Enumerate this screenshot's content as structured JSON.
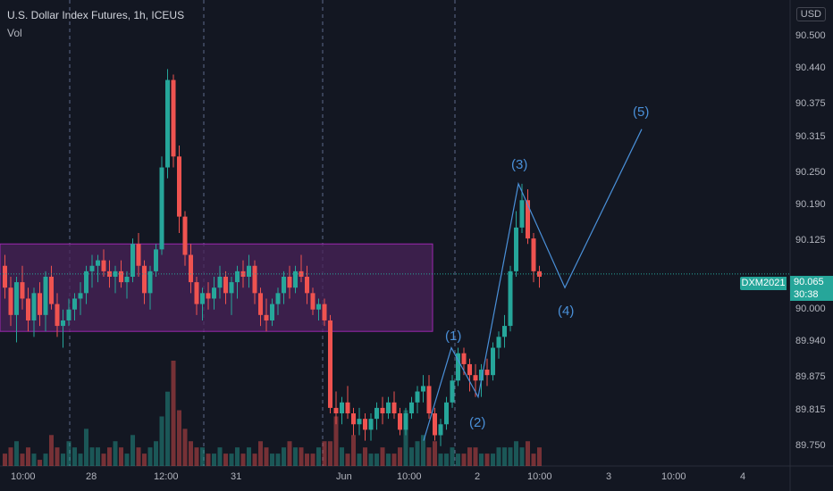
{
  "header": {
    "title": "U.S. Dollar Index Futures, 1h, ICEUS",
    "volume_label": "Vol",
    "currency_button": "USD"
  },
  "price_axis": {
    "ticks": [
      "90.500",
      "90.440",
      "90.375",
      "90.315",
      "90.250",
      "90.190",
      "90.125",
      "90.000",
      "89.940",
      "89.875",
      "89.815",
      "89.750"
    ],
    "last_price": "90.065",
    "countdown": "30:38",
    "symbol_tag": "DXM2021"
  },
  "time_axis": {
    "ticks": [
      "10:00",
      "28",
      "12:00",
      "31",
      "Jun",
      "10:00",
      "2",
      "10:00",
      "3",
      "10:00",
      "4"
    ]
  },
  "wave_labels": [
    "(1)",
    "(2)",
    "(3)",
    "(4)",
    "(5)"
  ],
  "colors": {
    "background": "#131722",
    "up": "#26a69a",
    "down": "#ef5350",
    "range_box_fill": "#4a235a",
    "range_box_border": "#9c27b0",
    "wave_line": "#4a90d9"
  },
  "chart_data": {
    "type": "candlestick",
    "candles": [
      [
        90.08,
        90.1,
        90.02,
        90.04
      ],
      [
        90.04,
        90.06,
        89.97,
        89.99
      ],
      [
        89.99,
        90.06,
        89.94,
        90.05
      ],
      [
        90.05,
        90.08,
        90.0,
        90.02
      ],
      [
        90.02,
        90.04,
        89.96,
        89.98
      ],
      [
        89.98,
        90.04,
        89.95,
        90.03
      ],
      [
        90.03,
        90.05,
        89.97,
        89.99
      ],
      [
        89.99,
        90.07,
        89.96,
        90.06
      ],
      [
        90.06,
        90.08,
        90.0,
        90.01
      ],
      [
        90.01,
        90.03,
        89.95,
        89.97
      ],
      [
        89.97,
        90.0,
        89.93,
        89.98
      ],
      [
        89.98,
        90.02,
        89.97,
        90.0
      ],
      [
        90.0,
        90.03,
        89.98,
        90.02
      ],
      [
        90.02,
        90.05,
        89.99,
        90.03
      ],
      [
        90.03,
        90.08,
        90.01,
        90.07
      ],
      [
        90.07,
        90.1,
        90.04,
        90.08
      ],
      [
        90.08,
        90.1,
        90.05,
        90.09
      ],
      [
        90.09,
        90.11,
        90.06,
        90.07
      ],
      [
        90.07,
        90.09,
        90.04,
        90.06
      ],
      [
        90.06,
        90.08,
        90.03,
        90.07
      ],
      [
        90.07,
        90.09,
        90.04,
        90.05
      ],
      [
        90.05,
        90.07,
        90.02,
        90.06
      ],
      [
        90.06,
        90.13,
        90.05,
        90.12
      ],
      [
        90.12,
        90.14,
        90.06,
        90.08
      ],
      [
        90.08,
        90.09,
        90.01,
        90.03
      ],
      [
        90.03,
        90.08,
        90.0,
        90.07
      ],
      [
        90.07,
        90.12,
        90.06,
        90.11
      ],
      [
        90.11,
        90.28,
        90.1,
        90.26
      ],
      [
        90.26,
        90.44,
        90.24,
        90.42
      ],
      [
        90.42,
        90.43,
        90.26,
        90.28
      ],
      [
        90.28,
        90.3,
        90.14,
        90.17
      ],
      [
        90.17,
        90.18,
        90.08,
        90.1
      ],
      [
        90.1,
        90.12,
        90.03,
        90.05
      ],
      [
        90.05,
        90.06,
        89.99,
        90.01
      ],
      [
        90.01,
        90.04,
        89.98,
        90.03
      ],
      [
        90.03,
        90.05,
        90.0,
        90.02
      ],
      [
        90.02,
        90.06,
        90.0,
        90.04
      ],
      [
        90.04,
        90.08,
        90.02,
        90.06
      ],
      [
        90.06,
        90.07,
        90.01,
        90.03
      ],
      [
        90.03,
        90.06,
        89.99,
        90.05
      ],
      [
        90.05,
        90.08,
        90.02,
        90.07
      ],
      [
        90.07,
        90.09,
        90.04,
        90.06
      ],
      [
        90.06,
        90.1,
        90.04,
        90.08
      ],
      [
        90.08,
        90.09,
        90.01,
        90.03
      ],
      [
        90.03,
        90.04,
        89.97,
        89.99
      ],
      [
        89.99,
        90.02,
        89.96,
        89.98
      ],
      [
        89.98,
        90.02,
        89.97,
        90.01
      ],
      [
        90.01,
        90.04,
        89.99,
        90.03
      ],
      [
        90.03,
        90.07,
        90.01,
        90.06
      ],
      [
        90.06,
        90.08,
        90.02,
        90.04
      ],
      [
        90.04,
        90.08,
        90.03,
        90.07
      ],
      [
        90.07,
        90.1,
        90.05,
        90.06
      ],
      [
        90.06,
        90.08,
        90.01,
        90.03
      ],
      [
        90.03,
        90.04,
        89.99,
        90.0
      ],
      [
        90.0,
        90.02,
        89.98,
        90.01
      ],
      [
        90.01,
        90.02,
        89.97,
        89.98
      ],
      [
        89.98,
        89.99,
        89.81,
        89.82
      ],
      [
        89.82,
        89.85,
        89.79,
        89.81
      ],
      [
        89.81,
        89.84,
        89.79,
        89.83
      ],
      [
        89.83,
        89.86,
        89.8,
        89.81
      ],
      [
        89.81,
        89.82,
        89.77,
        89.79
      ],
      [
        89.79,
        89.82,
        89.77,
        89.8
      ],
      [
        89.8,
        89.81,
        89.76,
        89.78
      ],
      [
        89.78,
        89.81,
        89.76,
        89.8
      ],
      [
        89.8,
        89.83,
        89.78,
        89.82
      ],
      [
        89.82,
        89.84,
        89.79,
        89.81
      ],
      [
        89.81,
        89.84,
        89.8,
        89.83
      ],
      [
        89.83,
        89.85,
        89.8,
        89.81
      ],
      [
        89.81,
        89.82,
        89.77,
        89.78
      ],
      [
        89.78,
        89.82,
        89.77,
        89.81
      ],
      [
        89.81,
        89.84,
        89.8,
        89.83
      ],
      [
        89.83,
        89.86,
        89.81,
        89.85
      ],
      [
        89.85,
        89.88,
        89.83,
        89.86
      ],
      [
        89.86,
        89.88,
        89.8,
        89.81
      ],
      [
        89.81,
        89.82,
        89.76,
        89.77
      ],
      [
        89.77,
        89.8,
        89.75,
        89.79
      ],
      [
        89.79,
        89.84,
        89.78,
        89.83
      ],
      [
        89.83,
        89.88,
        89.82,
        89.87
      ],
      [
        89.87,
        89.93,
        89.86,
        89.92
      ],
      [
        89.92,
        89.93,
        89.88,
        89.9
      ],
      [
        89.9,
        89.91,
        89.85,
        89.88
      ],
      [
        89.88,
        89.9,
        89.84,
        89.87
      ],
      [
        89.87,
        89.9,
        89.84,
        89.89
      ],
      [
        89.89,
        89.91,
        89.86,
        89.88
      ],
      [
        89.88,
        89.94,
        89.87,
        89.93
      ],
      [
        89.93,
        89.96,
        89.91,
        89.95
      ],
      [
        89.95,
        89.99,
        89.93,
        89.97
      ],
      [
        89.97,
        90.08,
        89.96,
        90.07
      ],
      [
        90.07,
        90.18,
        90.06,
        90.15
      ],
      [
        90.15,
        90.23,
        90.14,
        90.2
      ],
      [
        90.2,
        90.22,
        90.12,
        90.13
      ],
      [
        90.13,
        90.14,
        90.05,
        90.07
      ],
      [
        90.07,
        90.08,
        90.04,
        90.06
      ]
    ],
    "volumes": [
      2,
      3,
      4,
      2,
      3,
      2,
      1,
      2,
      5,
      3,
      2,
      4,
      3,
      2,
      6,
      3,
      3,
      2,
      3,
      4,
      3,
      2,
      5,
      3,
      2,
      3,
      4,
      8,
      12,
      17,
      9,
      6,
      4,
      3,
      3,
      2,
      2,
      3,
      2,
      2,
      3,
      2,
      3,
      2,
      4,
      3,
      2,
      2,
      3,
      4,
      3,
      3,
      2,
      2,
      3,
      4,
      4,
      8,
      3,
      2,
      5,
      2,
      3,
      2,
      2,
      3,
      2,
      2,
      3,
      9,
      3,
      4,
      5,
      3,
      4,
      2,
      2,
      3,
      2,
      2,
      3,
      3,
      2,
      2,
      2,
      3,
      3,
      3,
      4,
      3,
      4,
      2,
      3
    ],
    "ylim": [
      89.73,
      90.55
    ],
    "wave_points": [
      [
        89.93,
        "(1)"
      ],
      [
        89.84,
        "(2)"
      ],
      [
        90.23,
        "(3)"
      ],
      [
        90.04,
        "(4)"
      ],
      [
        90.33,
        "(5)"
      ]
    ],
    "range_box": {
      "low": 89.96,
      "high": 90.12
    },
    "last_price": 90.065
  }
}
